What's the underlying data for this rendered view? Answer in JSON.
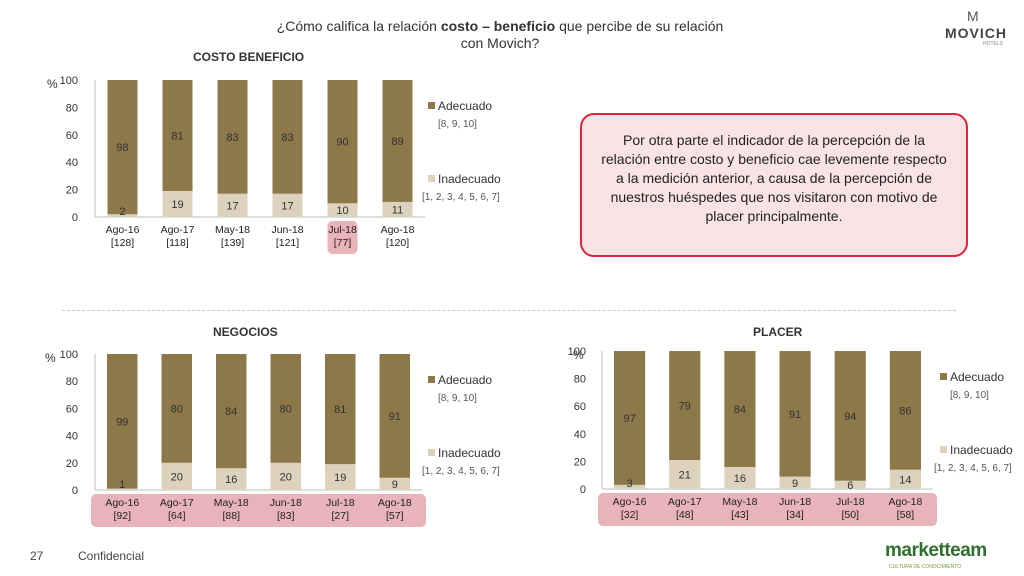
{
  "header": {
    "title_part1": "¿Cómo califica la relación ",
    "title_bold": "costo – beneficio",
    "title_part2": " que percibe de su relación",
    "title_line2": "con Movich?"
  },
  "logo": {
    "mark": "M",
    "word": "MOVICH",
    "sub": "HOTELS"
  },
  "callout": {
    "text": "Por otra parte el indicador de la percepción de la relación entre costo y beneficio cae levemente respecto a la medición anterior, a causa de la percepción de nuestros huéspedes que nos visitaron con motivo de placer principalmente."
  },
  "footer": {
    "page": "27",
    "label": "Confidencial"
  },
  "brand": {
    "word_a": "market",
    "word_b": "team",
    "tagline": "CULTURA DE CONOCIMIENTO"
  },
  "colors": {
    "adecuado": "#8c7849",
    "inadecuado": "#ddd2bd",
    "highlight": "#e8b4b9"
  },
  "chart_data": [
    {
      "id": "costo",
      "type": "bar",
      "stacked": true,
      "title": "COSTO BENEFICIO",
      "ylabel": "%",
      "ylim": [
        0,
        100
      ],
      "yticks": [
        "0",
        "20",
        "40",
        "60",
        "80",
        "100"
      ],
      "categories": [
        "Ago-16",
        "Ago-17",
        "May-18",
        "Jun-18",
        "Jul-18",
        "Ago-18"
      ],
      "bases": [
        "[128]",
        "[118]",
        "[139]",
        "[121]",
        "[77]",
        "[120]"
      ],
      "highlight": [
        4
      ],
      "series": [
        {
          "name": "Inadecuado",
          "sub": "[1, 2, 3, 4, 5, 6, 7]",
          "values": [
            2,
            19,
            17,
            17,
            10,
            11
          ]
        },
        {
          "name": "Adecuado",
          "sub": "[8, 9, 10]",
          "values": [
            98,
            81,
            83,
            83,
            90,
            89
          ]
        }
      ]
    },
    {
      "id": "negocios",
      "type": "bar",
      "stacked": true,
      "title": "NEGOCIOS",
      "ylabel": "%",
      "ylim": [
        0,
        100
      ],
      "yticks": [
        "0",
        "20",
        "40",
        "60",
        "80",
        "100"
      ],
      "categories": [
        "Ago-16",
        "Ago-17",
        "May-18",
        "Jun-18",
        "Jul-18",
        "Ago-18"
      ],
      "bases": [
        "[92]",
        "[64]",
        "[88]",
        "[83]",
        "[27]",
        "[57]"
      ],
      "highlight": [
        0,
        1,
        2,
        3,
        4,
        5
      ],
      "series": [
        {
          "name": "Inadecuado",
          "sub": "[1, 2, 3, 4, 5, 6, 7]",
          "values": [
            1,
            20,
            16,
            20,
            19,
            9
          ]
        },
        {
          "name": "Adecuado",
          "sub": "[8, 9, 10]",
          "values": [
            99,
            80,
            84,
            80,
            81,
            91
          ]
        }
      ]
    },
    {
      "id": "placer",
      "type": "bar",
      "stacked": true,
      "title": "PLACER",
      "ylabel": "%",
      "ylim": [
        0,
        100
      ],
      "yticks": [
        "0",
        "20",
        "40",
        "60",
        "80",
        "100"
      ],
      "categories": [
        "Ago-16",
        "Ago-17",
        "May-18",
        "Jun-18",
        "Jul-18",
        "Ago-18"
      ],
      "bases": [
        "[32]",
        "[48]",
        "[43]",
        "[34]",
        "[50]",
        "[58]"
      ],
      "highlight": [
        0,
        1,
        2,
        3,
        4,
        5
      ],
      "series": [
        {
          "name": "Inadecuado",
          "sub": "[1, 2, 3, 4, 5, 6, 7]",
          "values": [
            3,
            21,
            16,
            9,
            6,
            14
          ]
        },
        {
          "name": "Adecuado",
          "sub": "[8, 9, 10]",
          "values": [
            97,
            79,
            84,
            91,
            94,
            86
          ]
        }
      ]
    }
  ]
}
